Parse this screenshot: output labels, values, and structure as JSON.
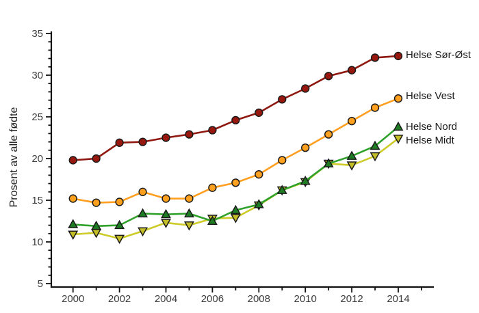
{
  "chart_data": {
    "type": "line",
    "title": "",
    "xlabel": "",
    "ylabel": "Prosent av alle fødte",
    "xlim": [
      2000,
      2014
    ],
    "ylim": [
      5,
      35
    ],
    "grid": false,
    "legend_position": "right-of-last-point",
    "x": [
      2000,
      2001,
      2002,
      2003,
      2004,
      2005,
      2006,
      2007,
      2008,
      2009,
      2010,
      2011,
      2012,
      2013,
      2014
    ],
    "x_tick_labels": [
      "2000",
      "2002",
      "2004",
      "2006",
      "2008",
      "2010",
      "2012",
      "2014"
    ],
    "x_minor_ticks": [
      2001,
      2003,
      2005,
      2007,
      2009,
      2011,
      2013,
      2015
    ],
    "y_major_ticks": [
      5,
      10,
      15,
      20,
      25,
      30,
      35
    ],
    "y_minor_step": 1,
    "series": [
      {
        "name": "Helse Sør-Øst",
        "marker": "circle",
        "line_color": "#8E1810",
        "marker_fill": "#98170E",
        "marker_stroke": "#1a1a1a",
        "values": [
          19.8,
          20.0,
          21.9,
          22.0,
          22.5,
          22.9,
          23.4,
          24.6,
          25.5,
          27.1,
          28.4,
          29.9,
          30.6,
          32.1,
          32.3
        ]
      },
      {
        "name": "Helse Vest",
        "marker": "circle",
        "line_color": "#FF9E1F",
        "marker_fill": "#FFA01E",
        "marker_stroke": "#1a1a1a",
        "values": [
          15.2,
          14.7,
          14.8,
          16.0,
          15.2,
          15.2,
          16.5,
          17.1,
          18.1,
          19.8,
          21.3,
          22.9,
          24.5,
          26.1,
          27.2
        ]
      },
      {
        "name": "Helse Nord",
        "marker": "triangle-up",
        "line_color": "#2FA12B",
        "marker_fill": "#1E7D23",
        "marker_stroke": "#1a1a1a",
        "values": [
          12.1,
          11.9,
          12.0,
          13.4,
          13.3,
          13.4,
          12.5,
          13.8,
          14.5,
          16.2,
          17.3,
          19.4,
          20.3,
          21.5,
          23.8
        ]
      },
      {
        "name": "Helse Midt",
        "marker": "triangle-down",
        "line_color": "#CDCB28",
        "marker_fill": "#C3BD26",
        "marker_stroke": "#1a1a1a",
        "values": [
          10.9,
          11.1,
          10.4,
          11.3,
          12.3,
          12.0,
          12.8,
          12.9,
          14.4,
          16.2,
          17.2,
          19.4,
          19.2,
          20.3,
          22.4
        ]
      }
    ],
    "axis_color": "#111111",
    "tick_label_color": "#3d3d3d"
  }
}
